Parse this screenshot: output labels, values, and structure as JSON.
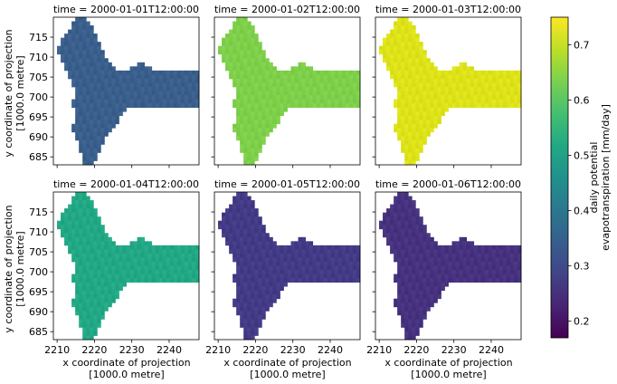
{
  "chart_data": {
    "type": "heatmap",
    "panels": [
      {
        "title": "time = 2000-01-01T12:00:00",
        "base": 0.31,
        "color": "#3a5f8c"
      },
      {
        "title": "time = 2000-01-02T12:00:00",
        "base": 0.63,
        "color": "#7ecf4a"
      },
      {
        "title": "time = 2000-01-03T12:00:00",
        "base": 0.72,
        "color": "#dde318"
      },
      {
        "title": "time = 2000-01-04T12:00:00",
        "base": 0.49,
        "color": "#22a884"
      },
      {
        "title": "time = 2000-01-05T12:00:00",
        "base": 0.26,
        "color": "#433b86"
      },
      {
        "title": "time = 2000-01-06T12:00:00",
        "base": 0.25,
        "color": "#46327e"
      }
    ],
    "xlabel_line1": "x coordinate of projection",
    "xlabel_line2": "[1000.0 metre]",
    "ylabel_line1": "y coordinate of projection",
    "ylabel_line2": "[1000.0 metre]",
    "xlim": [
      2209,
      2248
    ],
    "ylim": [
      683,
      720
    ],
    "xticks": [
      2210,
      2220,
      2230,
      2240
    ],
    "yticks": [
      685,
      690,
      695,
      700,
      705,
      710,
      715
    ],
    "colorbar": {
      "label_line1": "daily potential",
      "label_line2": "evapotranspiration [mm/day]",
      "min": 0.17,
      "max": 0.75,
      "ticks": [
        0.2,
        0.3,
        0.4,
        0.5,
        0.6,
        0.7
      ]
    },
    "region_mask": [
      "......###...............................",
      ".....#####..............................",
      ".....######.............................",
      "....#######.............................",
      "...#########............................",
      "..##########............................",
      "..###########...........................",
      ".############...........................",
      ".#############..........................",
      "..############..........................",
      "..#############.........................",
      "...#############.......##...............",
      "...##############....######.............",
      "....####################################",
      "....####################################",
      ".....###################################",
      ".....###################################",
      "......##################################",
      "......##################################",
      "......##################################",
      ".....###################################",
      ".....###################################",
      "......##############....................",
      "......#############.....................",
      "......############......................",
      "......############......................",
      ".....############.......................",
      ".....###########........................",
      "......#########.........................",
      "......########..........................",
      ".......#######..........................",
      ".......######...........................",
      ".......######...........................",
      "........####............................",
      "........####............................",
      "........###............................."
    ]
  }
}
